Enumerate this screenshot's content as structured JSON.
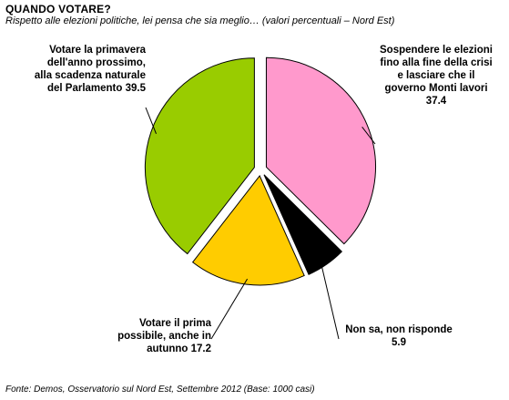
{
  "header": {
    "title": "QUANDO VOTARE?",
    "subtitle": "Rispetto alle elezioni politiche, lei pensa che sia meglio… (valori percentuali – Nord Est)"
  },
  "footer": {
    "source": "Fonte: Demos, Osservatorio sul Nord Est, Settembre 2012 (Base: 1000 casi)"
  },
  "chart_data": {
    "type": "pie",
    "exploded": true,
    "slices": [
      {
        "lines": [
          "Votare la primavera",
          "dell'anno prossimo,",
          "alla scadenza naturale",
          "del Parlamento 39.5"
        ],
        "value": 39.5,
        "color": "#99cc00"
      },
      {
        "lines": [
          "Sospendere le elezioni",
          "fino alla fine della crisi",
          "e lasciare che il",
          "governo Monti lavori",
          "37.4"
        ],
        "value": 37.4,
        "color": "#ff99cc"
      },
      {
        "lines": [
          "Non sa, non risponde",
          "5.9"
        ],
        "value": 5.9,
        "color": "#000000"
      },
      {
        "lines": [
          "Votare il prima",
          "possibile, anche in",
          "autunno 17.2"
        ],
        "value": 17.2,
        "color": "#ffcc00"
      }
    ]
  }
}
